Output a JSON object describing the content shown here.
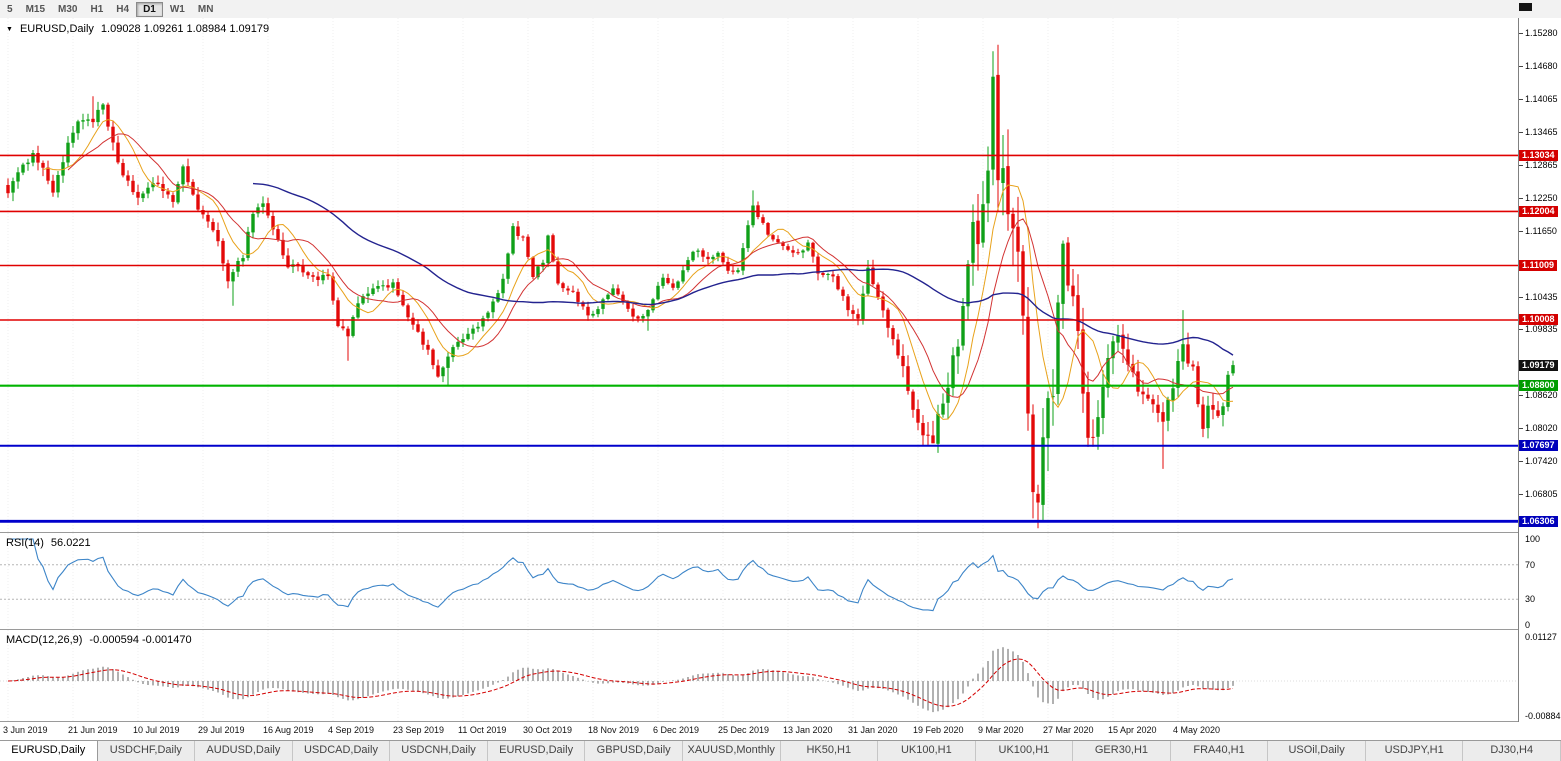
{
  "toolbar": {
    "periods": [
      {
        "label": "5",
        "active": false
      },
      {
        "label": "M15",
        "active": false
      },
      {
        "label": "M30",
        "active": false
      },
      {
        "label": "H1",
        "active": false
      },
      {
        "label": "H4",
        "active": false
      },
      {
        "label": "D1",
        "active": true
      },
      {
        "label": "W1",
        "active": false
      },
      {
        "label": "MN",
        "active": false
      }
    ]
  },
  "chart_header": {
    "arrow": "▼",
    "title": "EURUSD,Daily",
    "ohlc": "1.09028 1.09261 1.08984 1.09179"
  },
  "tabs": [
    {
      "label": "EURUSD,Daily",
      "active": true
    },
    {
      "label": "USDCHF,Daily",
      "active": false
    },
    {
      "label": "AUDUSD,Daily",
      "active": false
    },
    {
      "label": "USDCAD,Daily",
      "active": false
    },
    {
      "label": "USDCNH,Daily",
      "active": false
    },
    {
      "label": "EURUSD,Daily",
      "active": false
    },
    {
      "label": "GBPUSD,Daily",
      "active": false
    },
    {
      "label": "XAUUSD,Monthly",
      "active": false
    },
    {
      "label": "HK50,H1",
      "active": false
    },
    {
      "label": "UK100,H1",
      "active": false
    },
    {
      "label": "UK100,H1",
      "active": false
    },
    {
      "label": "GER30,H1",
      "active": false
    },
    {
      "label": "FRA40,H1",
      "active": false
    },
    {
      "label": "USOil,Daily",
      "active": false
    },
    {
      "label": "USDJPY,H1",
      "active": false
    },
    {
      "label": "DJ30,H4",
      "active": false
    }
  ],
  "chart_data": {
    "type": "candlestick",
    "symbol": "EURUSD",
    "timeframe": "Daily",
    "last_candle": {
      "open": 1.09028,
      "high": 1.09261,
      "low": 1.08984,
      "close": 1.09179
    },
    "up_color": "#0fa018",
    "down_color": "#e30909",
    "bars_total": 246,
    "dates": [
      "3 Jun 2019",
      "21 Jun 2019",
      "10 Jul 2019",
      "29 Jul 2019",
      "16 Aug 2019",
      "4 Sep 2019",
      "23 Sep 2019",
      "11 Oct 2019",
      "30 Oct 2019",
      "18 Nov 2019",
      "6 Dec 2019",
      "25 Dec 2019",
      "13 Jan 2020",
      "31 Jan 2020",
      "19 Feb 2020",
      "9 Mar 2020",
      "27 Mar 2020",
      "15 Apr 2020",
      "4 May 2020"
    ],
    "price_ticks": [
      1.1528,
      1.1468,
      1.14065,
      1.13465,
      1.12865,
      1.1225,
      1.1165,
      1.10435,
      1.09835,
      1.0862,
      1.0802,
      1.0742,
      1.06805
    ],
    "current_price": {
      "value": 1.09179,
      "label_bg": "#101010"
    },
    "levels": [
      {
        "price": 1.13034,
        "color": "#e00000",
        "width": 1.6,
        "label_bg": "#d40000"
      },
      {
        "price": 1.12004,
        "color": "#e00000",
        "width": 1.6,
        "label_bg": "#d40000"
      },
      {
        "price": 1.11009,
        "color": "#e00000",
        "width": 1.6,
        "label_bg": "#d40000"
      },
      {
        "price": 1.10008,
        "color": "#e00000",
        "width": 1.6,
        "label_bg": "#d40000"
      },
      {
        "price": 1.088,
        "color": "#00b400",
        "width": 2.2,
        "label_bg": "#009c00"
      },
      {
        "price": 1.07697,
        "color": "#0000cc",
        "width": 2.0,
        "label_bg": "#0000bb"
      },
      {
        "price": 1.06306,
        "color": "#0000cc",
        "width": 2.8,
        "label_bg": "#0000bb"
      }
    ],
    "moving_averages": [
      {
        "period": 8,
        "color": "#e8a21b",
        "width": 1
      },
      {
        "period": 13,
        "color": "#d23333",
        "width": 1
      },
      {
        "period": 50,
        "color": "#23238f",
        "width": 1.4
      }
    ],
    "price_anchors": [
      [
        0,
        1.124
      ],
      [
        3,
        1.128
      ],
      [
        5,
        1.1313
      ],
      [
        9,
        1.124
      ],
      [
        12,
        1.132
      ],
      [
        14,
        1.1369
      ],
      [
        17,
        1.137
      ],
      [
        19,
        1.1392
      ],
      [
        22,
        1.1285
      ],
      [
        26,
        1.1225
      ],
      [
        30,
        1.1253
      ],
      [
        33,
        1.122
      ],
      [
        35,
        1.1277
      ],
      [
        38,
        1.121
      ],
      [
        42,
        1.1143
      ],
      [
        44,
        1.1077
      ],
      [
        47,
        1.112
      ],
      [
        49,
        1.12
      ],
      [
        51,
        1.1215
      ],
      [
        53,
        1.117
      ],
      [
        56,
        1.1098
      ],
      [
        58,
        1.11
      ],
      [
        61,
        1.1078
      ],
      [
        64,
        1.1079
      ],
      [
        66,
        1.099
      ],
      [
        68,
        1.097
      ],
      [
        70,
        1.1035
      ],
      [
        72,
        1.1048
      ],
      [
        75,
        1.1064
      ],
      [
        77,
        1.1068
      ],
      [
        79,
        1.103
      ],
      [
        81,
        1.099
      ],
      [
        84,
        1.0941
      ],
      [
        86,
        1.09
      ],
      [
        88,
        1.0932
      ],
      [
        90,
        1.096
      ],
      [
        92,
        1.0973
      ],
      [
        95,
        1.1
      ],
      [
        97,
        1.103
      ],
      [
        99,
        1.1073
      ],
      [
        101,
        1.117
      ],
      [
        103,
        1.115
      ],
      [
        105,
        1.108
      ],
      [
        107,
        1.111
      ],
      [
        108,
        1.1152
      ],
      [
        110,
        1.107
      ],
      [
        113,
        1.105
      ],
      [
        116,
        1.101
      ],
      [
        118,
        1.1022
      ],
      [
        121,
        1.106
      ],
      [
        124,
        1.1021
      ],
      [
        126,
        1.1
      ],
      [
        128,
        1.1018
      ],
      [
        131,
        1.108
      ],
      [
        133,
        1.106
      ],
      [
        135,
        1.109
      ],
      [
        137,
        1.113
      ],
      [
        140,
        1.1115
      ],
      [
        142,
        1.1122
      ],
      [
        144,
        1.1087
      ],
      [
        146,
        1.1096
      ],
      [
        149,
        1.1212
      ],
      [
        152,
        1.116
      ],
      [
        155,
        1.1135
      ],
      [
        157,
        1.1122
      ],
      [
        160,
        1.1138
      ],
      [
        162,
        1.109
      ],
      [
        165,
        1.1085
      ],
      [
        168,
        1.1019
      ],
      [
        170,
        1.1002
      ],
      [
        172,
        1.1093
      ],
      [
        174,
        1.1048
      ],
      [
        176,
        1.0983
      ],
      [
        179,
        1.091
      ],
      [
        181,
        1.084
      ],
      [
        183,
        1.0795
      ],
      [
        185,
        1.0785
      ],
      [
        187,
        1.085
      ],
      [
        188,
        1.0881
      ],
      [
        190,
        1.0965
      ],
      [
        191,
        1.1027
      ],
      [
        193,
        1.117
      ],
      [
        194,
        1.1135
      ],
      [
        196,
        1.1285
      ],
      [
        197,
        1.1446
      ],
      [
        198,
        1.128
      ],
      [
        199,
        1.127
      ],
      [
        200,
        1.1184
      ],
      [
        202,
        1.11
      ],
      [
        203,
        1.0998
      ],
      [
        204,
        1.086
      ],
      [
        205,
        1.0692
      ],
      [
        206,
        1.0695
      ],
      [
        207,
        1.079
      ],
      [
        209,
        1.0885
      ],
      [
        210,
        1.104
      ],
      [
        211,
        1.114
      ],
      [
        213,
        1.103
      ],
      [
        214,
        1.0963
      ],
      [
        216,
        1.08
      ],
      [
        217,
        1.079
      ],
      [
        219,
        1.0867
      ],
      [
        220,
        1.093
      ],
      [
        222,
        1.098
      ],
      [
        224,
        1.091
      ],
      [
        226,
        1.0875
      ],
      [
        228,
        1.0858
      ],
      [
        230,
        1.083
      ],
      [
        231,
        1.0821
      ],
      [
        233,
        1.0875
      ],
      [
        235,
        1.0955
      ],
      [
        237,
        1.0905
      ],
      [
        239,
        1.0795
      ],
      [
        240,
        1.0834
      ],
      [
        242,
        1.0818
      ],
      [
        243,
        1.0849
      ],
      [
        244,
        1.0903
      ],
      [
        245,
        1.0918
      ]
    ],
    "volatility_anchors": [
      [
        0,
        0.002
      ],
      [
        40,
        0.0018
      ],
      [
        80,
        0.0016
      ],
      [
        120,
        0.0013
      ],
      [
        150,
        0.0013
      ],
      [
        170,
        0.0018
      ],
      [
        180,
        0.0028
      ],
      [
        190,
        0.0045
      ],
      [
        196,
        0.0075
      ],
      [
        203,
        0.0095
      ],
      [
        208,
        0.008
      ],
      [
        213,
        0.006
      ],
      [
        220,
        0.0042
      ],
      [
        228,
        0.0032
      ],
      [
        238,
        0.003
      ],
      [
        245,
        0.0026
      ]
    ],
    "wick_overrides": {
      "17": {
        "h": 1.1412
      },
      "45": {
        "l": 1.1027
      },
      "68": {
        "l": 1.0926
      },
      "88": {
        "l": 1.0879
      },
      "101": {
        "h": 1.1179
      },
      "128": {
        "l": 1.0981
      },
      "149": {
        "h": 1.1239
      },
      "185": {
        "l": 1.0778
      },
      "197": {
        "h": 1.1495
      },
      "205": {
        "l": 1.0636
      },
      "211": {
        "h": 1.1147
      },
      "231": {
        "l": 1.0727
      },
      "235": {
        "h": 1.1019
      },
      "240": {
        "l": 1.0783
      },
      "245": {
        "o": 1.09028,
        "h": 1.09261,
        "l": 1.08984,
        "c": 1.09179
      }
    },
    "rsi": {
      "title": "RSI(14)",
      "value_display": "56.0221",
      "period": 14,
      "levels": [
        70,
        30
      ],
      "axis": [
        {
          "v": 100,
          "label": "100"
        },
        {
          "v": 70,
          "label": "70"
        },
        {
          "v": 30,
          "label": "30"
        },
        {
          "v": 0,
          "label": "0"
        }
      ],
      "color": "#3d85c8"
    },
    "macd": {
      "title": "MACD(12,26,9)",
      "value_display": "-0.000594 -0.001470",
      "fast": 12,
      "slow": 26,
      "signal": 9,
      "axis": [
        {
          "v": 0.01127,
          "label": "0.01127"
        },
        {
          "v": -0.00884,
          "label": "-0.00884"
        }
      ],
      "hist_color": "#7d7d7d",
      "signal_color": "#d40000"
    }
  }
}
